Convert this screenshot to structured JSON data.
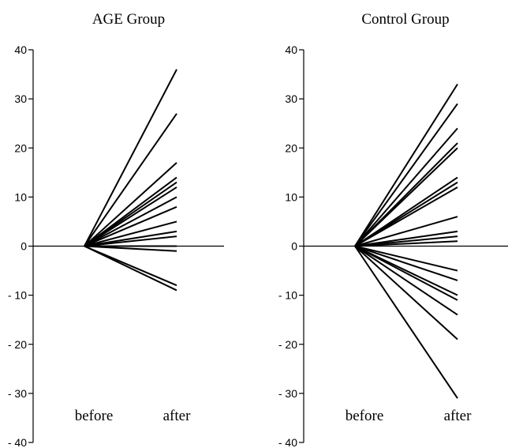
{
  "chart_data": [
    {
      "type": "line",
      "title": "AGE Group",
      "categories": [
        "before",
        "after"
      ],
      "ylim": [
        -40,
        40
      ],
      "yticks": [
        -40,
        -30,
        -20,
        -10,
        0,
        10,
        20,
        30,
        40
      ],
      "ytick_labels": [
        "- 40",
        "- 30",
        "- 20",
        "- 10",
        "0",
        "10",
        "20",
        "30",
        "40"
      ],
      "grid": false,
      "before_value": 0,
      "after_values": [
        36,
        27,
        17,
        14,
        13,
        12,
        10,
        8,
        5,
        3,
        2,
        0,
        -1,
        -8,
        -9
      ]
    },
    {
      "type": "line",
      "title": "Control Group",
      "categories": [
        "before",
        "after"
      ],
      "ylim": [
        -40,
        40
      ],
      "yticks": [
        -40,
        -30,
        -20,
        -10,
        0,
        10,
        20,
        30,
        40
      ],
      "ytick_labels": [
        "- 40",
        "- 30",
        "- 20",
        "- 10",
        "0",
        "10",
        "20",
        "30",
        "40"
      ],
      "grid": false,
      "before_value": 0,
      "after_values": [
        33,
        29,
        24,
        21,
        20,
        14,
        13,
        12,
        6,
        3,
        2,
        1,
        -5,
        -7,
        -10,
        -11,
        -14,
        -19,
        -31
      ]
    }
  ]
}
